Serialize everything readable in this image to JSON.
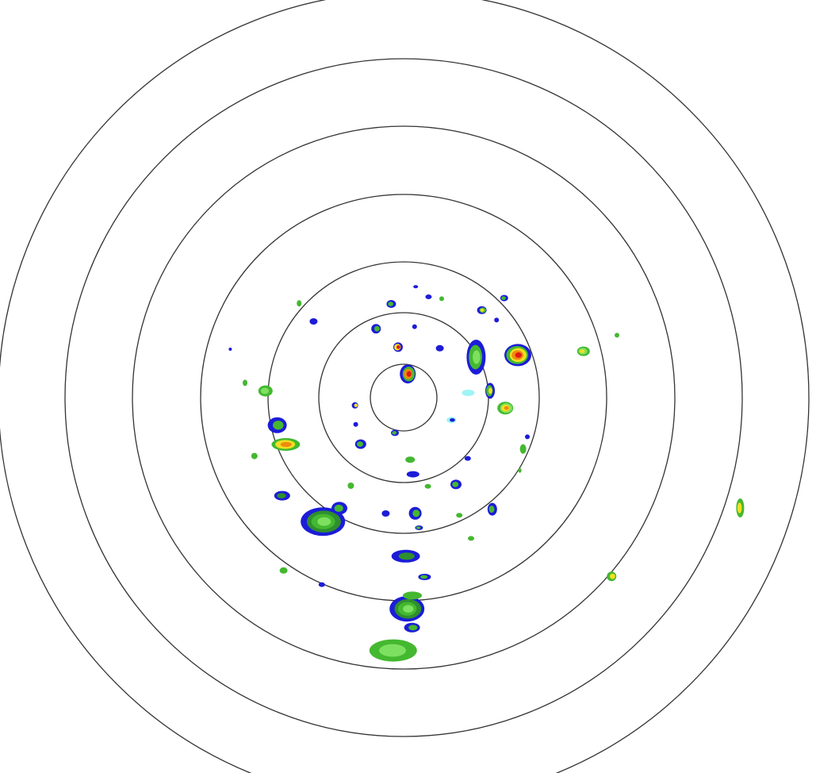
{
  "display": {
    "type": "radar-reflectivity-ppi",
    "range_rings": 7,
    "background_color": "#ffffff",
    "ring_color": "#333333"
  },
  "reflectivity_colors": {
    "light_cyan": "#9ff4f4",
    "blue": "#1c1cd8",
    "dark_green": "#2e8f2e",
    "green": "#44b830",
    "light_green": "#7ee060",
    "yellow": "#f0e020",
    "orange": "#f08a10",
    "red": "#e01818"
  }
}
